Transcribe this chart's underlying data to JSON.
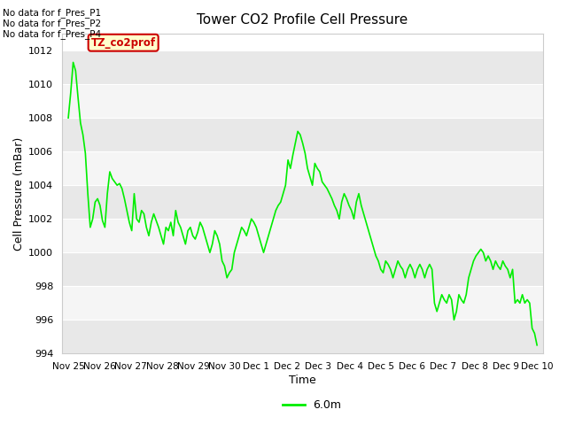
{
  "title": "Tower CO2 Profile Cell Pressure",
  "xlabel": "Time",
  "ylabel": "Cell Pressure (mBar)",
  "ylim": [
    994,
    1013
  ],
  "yticks": [
    994,
    996,
    998,
    1000,
    1002,
    1004,
    1006,
    1008,
    1010,
    1012
  ],
  "line_color": "#00ee00",
  "line_width": 1.2,
  "fig_bg": "#ffffff",
  "plot_bg_light": "#eeeeee",
  "plot_bg_dark": "#dddddd",
  "grid_color": "#ffffff",
  "legend_label": "6.0m",
  "no_data_texts": [
    "No data for f_Pres_P1",
    "No data for f_Pres_P2",
    "No data for f_Pres_P4"
  ],
  "tooltip_text": "TZ_co2prof",
  "tooltip_bg": "#ffffcc",
  "tooltip_border": "#cc0000",
  "x_tick_labels": [
    "Nov 25",
    "Nov 26",
    "Nov 27",
    "Nov 28",
    "Nov 29",
    "Nov 30",
    "Dec 1",
    "Dec 2",
    "Dec 3",
    "Dec 4",
    "Dec 5",
    "Dec 6",
    "Dec 7",
    "Dec 8",
    "Dec 9",
    "Dec 10"
  ],
  "y_data": [
    1008.0,
    1009.5,
    1011.3,
    1010.8,
    1009.2,
    1007.7,
    1007.0,
    1005.9,
    1003.5,
    1001.5,
    1002.0,
    1003.0,
    1003.2,
    1002.8,
    1001.9,
    1001.5,
    1003.5,
    1004.8,
    1004.4,
    1004.2,
    1004.0,
    1004.1,
    1003.8,
    1003.2,
    1002.5,
    1001.8,
    1001.3,
    1003.5,
    1002.0,
    1001.8,
    1002.5,
    1002.3,
    1001.5,
    1001.0,
    1001.8,
    1002.3,
    1001.9,
    1001.5,
    1001.0,
    1000.5,
    1001.5,
    1001.3,
    1001.8,
    1001.0,
    1002.5,
    1001.8,
    1001.5,
    1001.0,
    1000.5,
    1001.3,
    1001.5,
    1001.0,
    1000.8,
    1001.2,
    1001.8,
    1001.5,
    1001.0,
    1000.5,
    1000.0,
    1000.5,
    1001.3,
    1001.0,
    1000.5,
    999.5,
    999.2,
    998.5,
    998.8,
    999.0,
    1000.0,
    1000.5,
    1001.0,
    1001.5,
    1001.3,
    1001.0,
    1001.5,
    1002.0,
    1001.8,
    1001.5,
    1001.0,
    1000.5,
    1000.0,
    1000.5,
    1001.0,
    1001.5,
    1002.0,
    1002.5,
    1002.8,
    1003.0,
    1003.5,
    1004.0,
    1005.5,
    1005.0,
    1005.8,
    1006.5,
    1007.2,
    1007.0,
    1006.5,
    1005.9,
    1005.0,
    1004.5,
    1004.0,
    1005.3,
    1005.0,
    1004.8,
    1004.2,
    1004.0,
    1003.8,
    1003.5,
    1003.2,
    1002.8,
    1002.5,
    1002.0,
    1003.0,
    1003.5,
    1003.2,
    1002.8,
    1002.5,
    1002.0,
    1003.0,
    1003.5,
    1002.8,
    1002.3,
    1001.8,
    1001.3,
    1000.8,
    1000.3,
    999.8,
    999.5,
    999.0,
    998.8,
    999.5,
    999.3,
    999.0,
    998.5,
    999.0,
    999.5,
    999.2,
    999.0,
    998.5,
    999.0,
    999.3,
    999.0,
    998.5,
    999.0,
    999.3,
    999.0,
    998.5,
    999.0,
    999.3,
    999.0,
    997.0,
    996.5,
    997.0,
    997.5,
    997.2,
    997.0,
    997.5,
    997.2,
    996.0,
    996.5,
    997.5,
    997.2,
    997.0,
    997.5,
    998.5,
    999.0,
    999.5,
    999.8,
    1000.0,
    1000.2,
    1000.0,
    999.5,
    999.8,
    999.5,
    999.0,
    999.5,
    999.2,
    999.0,
    999.5,
    999.2,
    999.0,
    998.5,
    999.0,
    997.0,
    997.2,
    997.0,
    997.5,
    997.0,
    997.2,
    997.0,
    995.5,
    995.2,
    994.5
  ]
}
